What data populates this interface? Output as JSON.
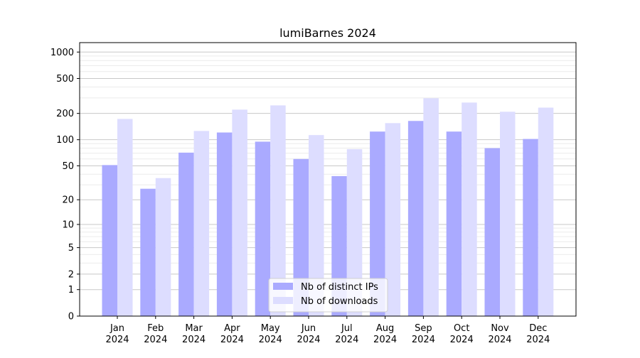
{
  "chart_data": {
    "type": "bar",
    "title": "lumiBarnes 2024",
    "xlabel": "",
    "ylabel": "",
    "yscale": "log10(1+y)",
    "ylim": [
      0,
      1280
    ],
    "yticks": [
      0,
      1,
      2,
      5,
      10,
      20,
      50,
      100,
      200,
      500,
      1000
    ],
    "grid": true,
    "legend_position": "bottom-center",
    "categories": [
      "Jan\n2024",
      "Feb\n2024",
      "Mar\n2024",
      "Apr\n2024",
      "May\n2024",
      "Jun\n2024",
      "Jul\n2024",
      "Aug\n2024",
      "Sep\n2024",
      "Oct\n2024",
      "Nov\n2024",
      "Dec\n2024"
    ],
    "series": [
      {
        "name": "Nb of distinct IPs",
        "color": "#aaaaff",
        "values": [
          51,
          27,
          71,
          121,
          95,
          60,
          38,
          124,
          164,
          124,
          80,
          102
        ]
      },
      {
        "name": "Nb of downloads",
        "color": "#ddddff",
        "values": [
          173,
          36,
          126,
          221,
          247,
          113,
          78,
          155,
          298,
          266,
          209,
          233
        ]
      }
    ]
  }
}
